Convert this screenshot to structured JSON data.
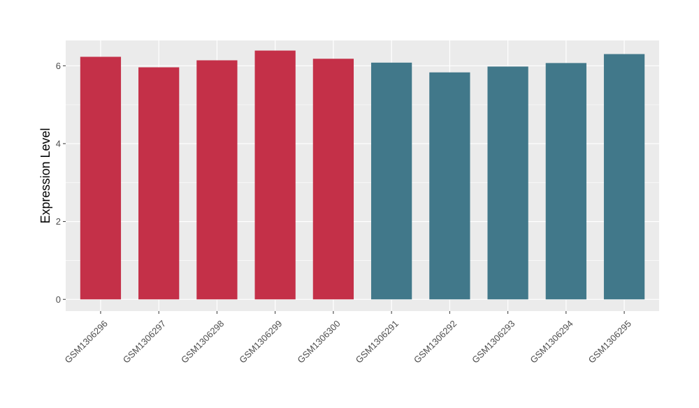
{
  "chart_data": {
    "type": "bar",
    "title": "",
    "xlabel": "",
    "ylabel": "Expression Level",
    "ylim": [
      -0.3,
      6.65
    ],
    "y_ticks": [
      0,
      2,
      4,
      6
    ],
    "grid": true,
    "legend": "none",
    "categories": [
      "GSM1306296",
      "GSM1306297",
      "GSM1306298",
      "GSM1306299",
      "GSM1306300",
      "GSM1306291",
      "GSM1306292",
      "GSM1306293",
      "GSM1306294",
      "GSM1306295"
    ],
    "values": [
      6.23,
      5.96,
      6.14,
      6.39,
      6.18,
      6.08,
      5.83,
      5.98,
      6.07,
      6.3
    ],
    "bar_colors": [
      "#c43048",
      "#c43048",
      "#c43048",
      "#c43048",
      "#c43048",
      "#41788a",
      "#41788a",
      "#41788a",
      "#41788a",
      "#41788a"
    ],
    "panel_background": "#ebebeb",
    "grid_color": "#ffffff"
  }
}
